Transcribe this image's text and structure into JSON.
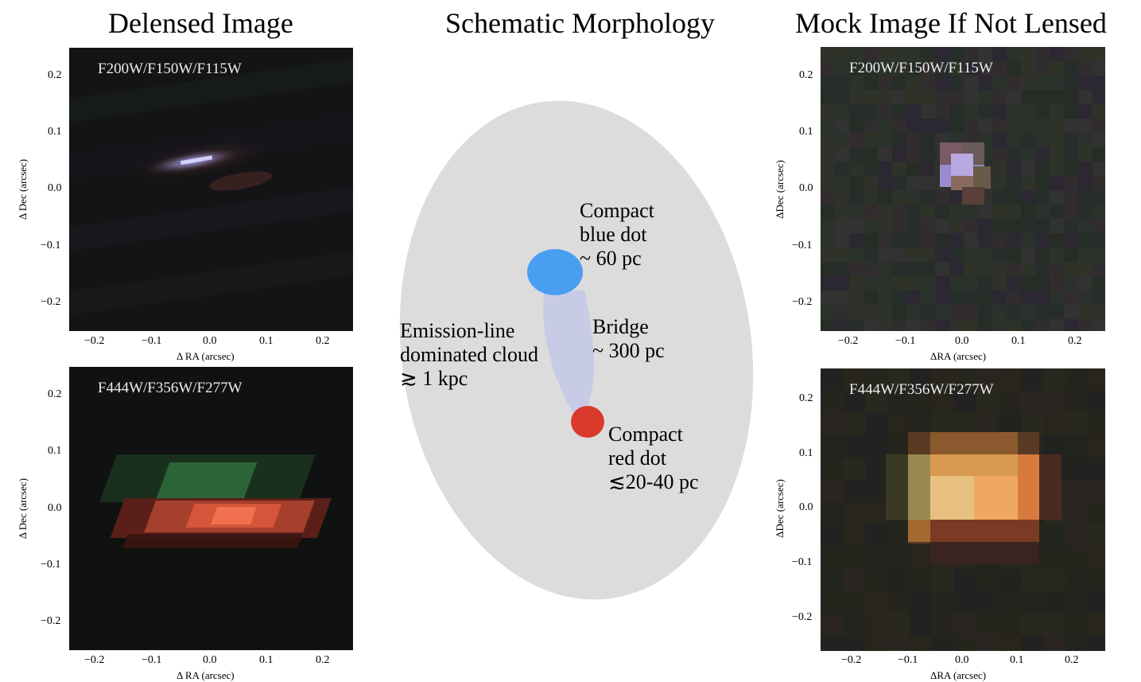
{
  "titles": {
    "left": "Delensed Image",
    "center": "Schematic Morphology",
    "right": "Mock Image If Not Lensed"
  },
  "panels": {
    "delensed_top": {
      "filters": "F200W/F150W/F115W",
      "xlabel": "Δ RA (arcsec)",
      "ylabel": "Δ Dec (arcsec)"
    },
    "delensed_bottom": {
      "filters": "F444W/F356W/F277W",
      "xlabel": "Δ RA (arcsec)",
      "ylabel": "Δ Dec (arcsec)"
    },
    "mock_top": {
      "filters": "F200W/F150W/F115W",
      "xlabel": "ΔRA (arcsec)",
      "ylabel": "ΔDec (arcsec)"
    },
    "mock_bottom": {
      "filters": "F444W/F356W/F277W",
      "xlabel": "ΔRA (arcsec)",
      "ylabel": "ΔDec (arcsec)"
    }
  },
  "axes": {
    "x_ticks": [
      "−0.2",
      "−0.1",
      "0.0",
      "0.1",
      "0.2"
    ],
    "y_ticks": [
      "0.2",
      "0.1",
      "0.0",
      "−0.1",
      "−0.2"
    ]
  },
  "schematic": {
    "cloud_label": [
      "Emission-line",
      "dominated cloud",
      "≳ 1 kpc"
    ],
    "blue_dot_label": [
      "Compact",
      "blue dot",
      "~ 60 pc"
    ],
    "bridge_label": [
      "Bridge",
      "~ 300 pc"
    ],
    "red_dot_label": [
      "Compact",
      "red dot",
      "≲20-40 pc"
    ],
    "colors": {
      "cloud": "#dcdcdc",
      "blue_dot": "#4a9ef2",
      "red_dot": "#d93a2b",
      "bridge": "#c8cbe6"
    }
  }
}
